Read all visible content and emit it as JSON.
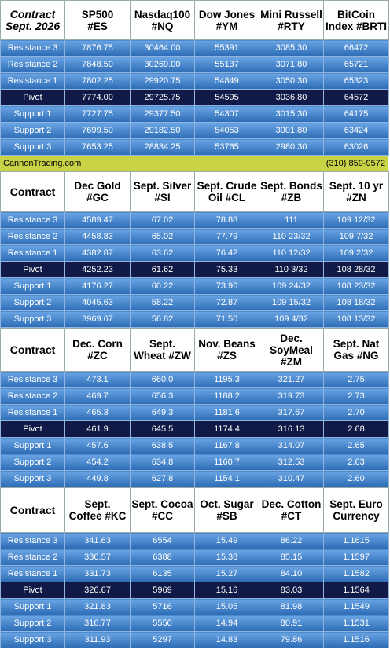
{
  "sections": [
    {
      "header": [
        "Contract\nSept. 2026",
        "SP500\n#ES",
        "Nasdaq100\n#NQ",
        "Dow Jones\n#YM",
        "Mini Russell\n#RTY",
        "BitCoin\nIndex #BRTI"
      ],
      "rows": [
        [
          "Resistance 3",
          "7876.75",
          "30464.00",
          "55391",
          "3085.30",
          "66472"
        ],
        [
          "Resistance 2",
          "7848.50",
          "30269.00",
          "55137",
          "3071.80",
          "65721"
        ],
        [
          "Resistance 1",
          "7802.25",
          "29920.75",
          "54849",
          "3050.30",
          "65323"
        ],
        [
          "Pivot",
          "7774.00",
          "29725.75",
          "54595",
          "3036.80",
          "64572"
        ],
        [
          "Support 1",
          "7727.75",
          "29377.50",
          "54307",
          "3015.30",
          "64175"
        ],
        [
          "Support 2",
          "7699.50",
          "29182.50",
          "54053",
          "3001.80",
          "63424"
        ],
        [
          "Support 3",
          "7653.25",
          "28834.25",
          "53765",
          "2980.30",
          "63026"
        ]
      ]
    },
    {
      "header": [
        "Contract",
        "Dec Gold\n#GC",
        "Sept. Silver\n#SI",
        "Sept. Crude\nOil #CL",
        "Sept. Bonds\n#ZB",
        "Sept. 10 yr\n#ZN"
      ],
      "rows": [
        [
          "Resistance 3",
          "4589.47",
          "67.02",
          "78.88",
          "111",
          "109 12/32"
        ],
        [
          "Resistance 2",
          "4458.83",
          "65.02",
          "77.79",
          "110 23/32",
          "109 7/32"
        ],
        [
          "Resistance 1",
          "4382.87",
          "63.62",
          "76.42",
          "110 12/32",
          "109 2/32"
        ],
        [
          "Pivot",
          "4252.23",
          "61.62",
          "75.33",
          "110 3/32",
          "108 28/32"
        ],
        [
          "Support 1",
          "4176.27",
          "60.22",
          "73.96",
          "109 24/32",
          "108 23/32"
        ],
        [
          "Support 2",
          "4045.63",
          "58.22",
          "72.87",
          "109 15/32",
          "108 18/32"
        ],
        [
          "Support 3",
          "3969.67",
          "56.82",
          "71.50",
          "109 4/32",
          "108 13/32"
        ]
      ]
    },
    {
      "header": [
        "Contract",
        "Dec. Corn\n#ZC",
        "Sept.\nWheat #ZW",
        "Nov. Beans\n#ZS",
        "Dec.\nSoyMeal\n#ZM",
        "Sept. Nat\nGas #NG"
      ],
      "rows": [
        [
          "Resistance 3",
          "473.1",
          "660.0",
          "1195.3",
          "321.27",
          "2.75"
        ],
        [
          "Resistance 2",
          "469.7",
          "656.3",
          "1188.2",
          "319.73",
          "2.73"
        ],
        [
          "Resistance 1",
          "465.3",
          "649.3",
          "1181.6",
          "317.67",
          "2.70"
        ],
        [
          "Pivot",
          "461.9",
          "645.5",
          "1174.4",
          "316.13",
          "2.68"
        ],
        [
          "Support 1",
          "457.6",
          "638.5",
          "1167.8",
          "314.07",
          "2.65"
        ],
        [
          "Support 2",
          "454.2",
          "634.8",
          "1160.7",
          "312.53",
          "2.63"
        ],
        [
          "Support 3",
          "449.8",
          "627.8",
          "1154.1",
          "310.47",
          "2.60"
        ]
      ]
    },
    {
      "header": [
        "Contract",
        "Sept.\nCoffee #KC",
        "Sept. Cocoa\n#CC",
        "Oct. Sugar\n#SB",
        "Dec. Cotton\n#CT",
        "Sept. Euro\nCurrency"
      ],
      "rows": [
        [
          "Resistance 3",
          "341.63",
          "6554",
          "15.49",
          "86.22",
          "1.1615"
        ],
        [
          "Resistance 2",
          "336.57",
          "6388",
          "15.38",
          "85.15",
          "1.1597"
        ],
        [
          "Resistance 1",
          "331.73",
          "6135",
          "15.27",
          "84.10",
          "1.1582"
        ],
        [
          "Pivot",
          "326.67",
          "5969",
          "15.16",
          "83.03",
          "1.1564"
        ],
        [
          "Support 1",
          "321.83",
          "5716",
          "15.05",
          "81.98",
          "1.1549"
        ],
        [
          "Support 2",
          "316.77",
          "5550",
          "14.94",
          "80.91",
          "1.1531"
        ],
        [
          "Support 3",
          "311.93",
          "5297",
          "14.83",
          "79.86",
          "1.1516"
        ]
      ]
    }
  ],
  "banner": {
    "site": "CannonTrading.com",
    "phone": "(310) 859-9572"
  }
}
